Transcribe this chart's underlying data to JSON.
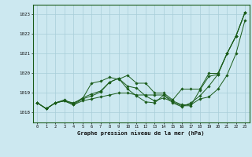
{
  "title": "Graphe pression niveau de la mer (hPa)",
  "background_color": "#cce8f0",
  "line_color": "#1a5c1a",
  "grid_color": "#a8cdd8",
  "x_ticks": [
    0,
    1,
    2,
    3,
    4,
    5,
    6,
    7,
    8,
    9,
    10,
    11,
    12,
    13,
    14,
    15,
    16,
    17,
    18,
    19,
    20,
    21,
    22,
    23
  ],
  "ylim": [
    1017.5,
    1023.5
  ],
  "yticks": [
    1018,
    1019,
    1020,
    1021,
    1022,
    1023
  ],
  "series": [
    [
      1018.5,
      1018.2,
      1018.5,
      1018.6,
      1018.5,
      1018.7,
      1019.5,
      1019.6,
      1019.8,
      1019.7,
      1019.9,
      1019.5,
      1019.5,
      1019.0,
      1019.0,
      1018.65,
      1019.2,
      1019.2,
      1019.2,
      1020.0,
      1020.0,
      1021.0,
      1021.9,
      1023.1
    ],
    [
      1018.5,
      1018.2,
      1018.5,
      1018.6,
      1018.4,
      1018.6,
      1018.7,
      1018.8,
      1018.9,
      1019.0,
      1019.0,
      1018.9,
      1018.9,
      1018.9,
      1018.9,
      1018.6,
      1018.4,
      1018.4,
      1018.7,
      1018.8,
      1019.2,
      1019.9,
      1021.0,
      1022.7
    ],
    [
      1018.5,
      1018.2,
      1018.5,
      1018.6,
      1018.4,
      1018.7,
      1018.85,
      1019.05,
      1019.55,
      1019.75,
      1019.35,
      1019.25,
      1018.85,
      1018.6,
      1018.75,
      1018.55,
      1018.35,
      1018.35,
      1019.15,
      1019.85,
      1019.95,
      1021.0,
      1021.9,
      1023.1
    ],
    [
      1018.5,
      1018.2,
      1018.5,
      1018.65,
      1018.45,
      1018.75,
      1018.95,
      1019.1,
      1019.55,
      1019.75,
      1019.2,
      1018.85,
      1018.55,
      1018.5,
      1018.9,
      1018.5,
      1018.3,
      1018.5,
      1018.85,
      1019.35,
      1019.95,
      1021.0,
      1021.9,
      1023.1
    ]
  ]
}
